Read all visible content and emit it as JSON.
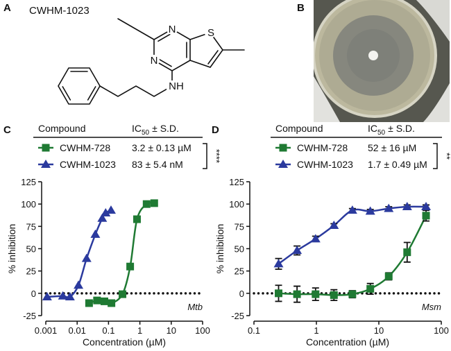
{
  "panel_labels": [
    "A",
    "B",
    "C",
    "D"
  ],
  "structure": {
    "name": "CWHM-1023",
    "atoms": [
      "N",
      "N",
      "S",
      "NH"
    ]
  },
  "chart_data": [
    {
      "type": "scatter",
      "xscale": "log",
      "xlim": [
        0.001,
        100
      ],
      "xticks": [
        0.001,
        0.01,
        0.1,
        1,
        10,
        100
      ],
      "ylim": [
        -25,
        125
      ],
      "yticks": [
        -25,
        0,
        25,
        50,
        75,
        100,
        125
      ],
      "xlabel": "Concentration (µM)",
      "ylabel": "% inhibition",
      "annotation": "Mtb",
      "hline": 0,
      "table_header": {
        "compound": "Compound",
        "ic": "IC",
        "sub": "50",
        "sd": "± S.D."
      },
      "significance": "****",
      "series": [
        {
          "name": "CWHM-728",
          "color": "#1f7a33",
          "marker": "square",
          "ic50": "3.2 ± 0.13 µM",
          "x": [
            0.024,
            0.043,
            0.074,
            0.124,
            0.279,
            0.49,
            0.81,
            1.64,
            2.87
          ],
          "values": [
            -11,
            -8,
            -9,
            -11,
            -1,
            30,
            83,
            100,
            101
          ]
        },
        {
          "name": "CWHM-1023",
          "color": "#2b3a9e",
          "marker": "triangle",
          "ic50": "83 ± 5.4 nM",
          "x": [
            0.0011,
            0.0035,
            0.0059,
            0.011,
            0.02,
            0.038,
            0.063,
            0.081,
            0.12
          ],
          "values": [
            -4,
            -3,
            -4,
            9,
            39,
            66,
            84,
            90,
            93
          ]
        }
      ]
    },
    {
      "type": "scatter",
      "xscale": "log",
      "xlim": [
        0.1,
        100
      ],
      "xticks": [
        0.1,
        1,
        10,
        100
      ],
      "ylim": [
        -25,
        125
      ],
      "yticks": [
        -25,
        0,
        25,
        50,
        75,
        100,
        125
      ],
      "xlabel": "Concentration (µM)",
      "ylabel": "% inhibition",
      "annotation": "Msm",
      "hline": 0,
      "table_header": {
        "compound": "Compound",
        "ic": "IC",
        "sub": "50",
        "sd": "± S.D."
      },
      "significance": "**",
      "series": [
        {
          "name": "CWHM-728",
          "color": "#1f7a33",
          "marker": "square",
          "ic50": "52 ± 16 µM",
          "x": [
            0.248,
            0.49,
            0.97,
            1.91,
            3.77,
            7.3,
            14.4,
            28.4,
            57
          ],
          "values": [
            0,
            -1,
            -1,
            -2,
            -1,
            5,
            19,
            46,
            87
          ],
          "errors": [
            9,
            9,
            7,
            6,
            4,
            6,
            4,
            11,
            6
          ]
        },
        {
          "name": "CWHM-1023",
          "color": "#2b3a9e",
          "marker": "triangle",
          "ic50": "1.7 ± 0.49 µM",
          "x": [
            0.248,
            0.49,
            0.97,
            1.91,
            3.77,
            7.3,
            14.4,
            28.4,
            57
          ],
          "values": [
            33,
            48,
            61,
            76,
            93,
            92,
            95,
            97,
            97
          ],
          "errors": [
            6,
            5,
            3,
            2,
            2,
            2,
            2,
            2,
            2
          ]
        }
      ]
    }
  ]
}
